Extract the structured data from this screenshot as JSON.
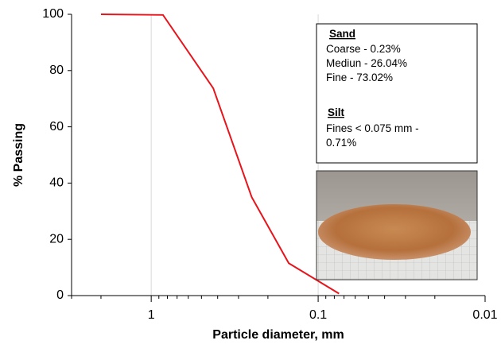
{
  "chart_data": {
    "type": "line",
    "x_label": "Particle diameter, mm",
    "y_label": "% Passing",
    "x": [
      2,
      0.85,
      0.425,
      0.25,
      0.15,
      0.075
    ],
    "series": [
      {
        "color": "#e8141b",
        "values": [
          100,
          99.77,
          73.7,
          35,
          11.5,
          0.71
        ]
      }
    ],
    "xlim": [
      3,
      0.01
    ],
    "xscale": "log",
    "x_reversed": true,
    "xticks": [
      1,
      0.1,
      0.01
    ],
    "x_minor_ticks": [
      3,
      2,
      0.9,
      0.8,
      0.7,
      0.6,
      0.5,
      0.4,
      0.3,
      0.2,
      0.09,
      0.08,
      0.07,
      0.06,
      0.05,
      0.04,
      0.03,
      0.02
    ],
    "ylim": [
      0,
      100
    ],
    "yticks": [
      0,
      20,
      40,
      60,
      80,
      100
    ],
    "grid_x": true,
    "annotation": {
      "sand_title": "Sand",
      "sand_lines": [
        "Coarse - 0.23%",
        "Mediun - 26.04%",
        "Fine - 73.02%"
      ],
      "silt_title": "Silt",
      "silt_lines": [
        "Fines < 0.075 mm -",
        "0.71%"
      ]
    }
  }
}
